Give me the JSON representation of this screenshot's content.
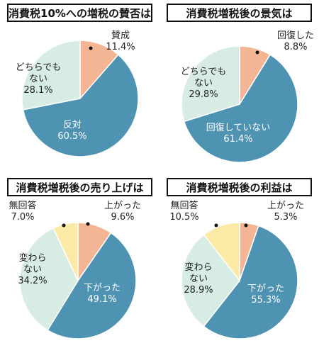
{
  "chart_data": [
    {
      "type": "pie",
      "title": "消費税10%への増税の賛否は",
      "slices": [
        {
          "label": "賛成",
          "value": 11.4,
          "pct": "11.4%",
          "color": "#f4b595"
        },
        {
          "label": "反対",
          "value": 60.5,
          "pct": "60.5%",
          "color": "#4f93b3"
        },
        {
          "label": "どちらでも\nない",
          "value": 28.1,
          "pct": "28.1%",
          "color": "#d7ece3"
        }
      ]
    },
    {
      "type": "pie",
      "title": "消費税増税後の景気は",
      "slices": [
        {
          "label": "回復した",
          "value": 8.8,
          "pct": "8.8%",
          "color": "#f4b595"
        },
        {
          "label": "回復していない",
          "value": 61.4,
          "pct": "61.4%",
          "color": "#4f93b3"
        },
        {
          "label": "どちらでも\nない",
          "value": 29.8,
          "pct": "29.8%",
          "color": "#d7ece3"
        }
      ]
    },
    {
      "type": "pie",
      "title": "消費税増税後の売り上げは",
      "slices": [
        {
          "label": "上がった",
          "value": 9.6,
          "pct": "9.6%",
          "color": "#f4b595"
        },
        {
          "label": "下がった",
          "value": 49.1,
          "pct": "49.1%",
          "color": "#4f93b3"
        },
        {
          "label": "変わら\nない",
          "value": 34.2,
          "pct": "34.2%",
          "color": "#d7ece3"
        },
        {
          "label": "無回答",
          "value": 7.0,
          "pct": "7.0%",
          "color": "#fbe9a6"
        }
      ]
    },
    {
      "type": "pie",
      "title": "消費税増税後の利益は",
      "slices": [
        {
          "label": "上がった",
          "value": 5.3,
          "pct": "5.3%",
          "color": "#f4b595"
        },
        {
          "label": "下がった",
          "value": 55.3,
          "pct": "55.3%",
          "color": "#4f93b3"
        },
        {
          "label": "変わら\nない",
          "value": 28.9,
          "pct": "28.9%",
          "color": "#d7ece3"
        },
        {
          "label": "無回答",
          "value": 10.5,
          "pct": "10.5%",
          "color": "#fbe9a6"
        }
      ]
    }
  ]
}
